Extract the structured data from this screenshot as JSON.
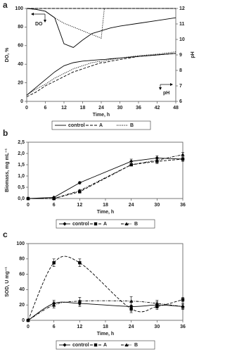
{
  "chart_data": [
    {
      "type": "line",
      "panel_label": "a",
      "xlabel": "Time, h",
      "ylabel": "DO, %",
      "y2label": "pH",
      "annotations": [
        "DO",
        "pH"
      ],
      "x": [
        0,
        3,
        6,
        9,
        12,
        15,
        18,
        21,
        24,
        25,
        27,
        30,
        36,
        42,
        48
      ],
      "xlim": [
        0,
        48
      ],
      "xticks": [
        0,
        6,
        12,
        18,
        24,
        30,
        36,
        42,
        48
      ],
      "ylim": [
        0,
        100
      ],
      "yticks": [
        0,
        20,
        40,
        60,
        80,
        100
      ],
      "y2lim": [
        6,
        12
      ],
      "y2ticks": [
        6,
        7,
        8,
        9,
        10,
        11,
        12
      ],
      "series": [
        {
          "name": "control",
          "color": "#000000",
          "dash": "solid",
          "values": [
            100,
            99,
            97,
            90,
            62,
            58,
            66,
            73,
            76,
            77,
            79,
            81,
            84,
            87,
            90
          ]
        },
        {
          "name": "A",
          "color": "#000000",
          "dash": "dashed",
          "values": [
            100,
            100,
            100,
            100,
            100,
            100,
            100,
            100,
            100,
            100,
            100,
            100,
            100,
            100,
            100
          ]
        },
        {
          "name": "B",
          "color": "#000000",
          "dash": "dotted",
          "values": [
            100,
            99,
            97,
            90,
            84,
            80,
            76,
            72,
            68,
            100,
            100,
            100,
            100,
            100,
            100
          ]
        },
        {
          "name": "control",
          "color": "#000000",
          "dash": "solid",
          "axis": "y2",
          "values": [
            6.4,
            6.9,
            7.4,
            7.9,
            8.3,
            8.5,
            8.6,
            8.65,
            8.7,
            8.7,
            8.75,
            8.8,
            8.9,
            9.0,
            9.1
          ]
        },
        {
          "name": "A",
          "color": "#000000",
          "dash": "dashed",
          "axis": "y2",
          "values": [
            6.3,
            6.6,
            7.0,
            7.3,
            7.6,
            7.9,
            8.1,
            8.3,
            8.5,
            8.5,
            8.6,
            8.7,
            8.9,
            9.0,
            9.1
          ]
        },
        {
          "name": "B",
          "color": "#000000",
          "dash": "dotted",
          "axis": "y2",
          "values": [
            6.4,
            6.8,
            7.1,
            7.5,
            7.8,
            8.1,
            8.3,
            8.5,
            8.6,
            8.6,
            8.7,
            8.8,
            8.95,
            9.05,
            9.2
          ]
        }
      ]
    },
    {
      "type": "line",
      "panel_label": "b",
      "xlabel": "Time, h",
      "ylabel": "Biomass, mg mL⁻¹",
      "x": [
        0,
        6,
        12,
        24,
        30,
        36
      ],
      "xlim": [
        0,
        36
      ],
      "xticks": [
        0,
        6,
        12,
        18,
        24,
        30,
        36
      ],
      "ylim": [
        0,
        2.5
      ],
      "yticks": [
        {
          "value": 0,
          "label": "0,0"
        },
        {
          "value": 0.5,
          "label": "0,5"
        },
        {
          "value": 1,
          "label": "1,0"
        },
        {
          "value": 1.5,
          "label": "1,5"
        },
        {
          "value": 2,
          "label": "2,0"
        },
        {
          "value": 2.5,
          "label": "2,5"
        }
      ],
      "series": [
        {
          "name": "control",
          "color": "#000000",
          "dash": "solid",
          "marker": "diamond",
          "values": [
            0,
            0.05,
            0.7,
            1.65,
            1.8,
            1.75
          ],
          "errors": [
            0,
            0.02,
            0.05,
            0.1,
            0.1,
            0.1
          ]
        },
        {
          "name": "A",
          "color": "#000000",
          "dash": "dashed",
          "marker": "square",
          "values": [
            0,
            0,
            0.3,
            1.5,
            1.65,
            1.75
          ],
          "errors": [
            0,
            0,
            0.05,
            0.05,
            0.1,
            0.1
          ]
        },
        {
          "name": "B",
          "color": "#000000",
          "dash": "dashdot",
          "marker": "triangle",
          "values": [
            0,
            0,
            0.35,
            1.5,
            1.7,
            1.95
          ],
          "errors": [
            0,
            0,
            0.05,
            0.05,
            0.1,
            0.1
          ]
        }
      ]
    },
    {
      "type": "line",
      "panel_label": "c",
      "xlabel": "Time, h",
      "ylabel": "SOD, U mg⁻¹",
      "smooth": true,
      "x": [
        0,
        6,
        12,
        24,
        30,
        36
      ],
      "xlim": [
        0,
        36
      ],
      "xticks": [
        0,
        6,
        12,
        18,
        24,
        30,
        36
      ],
      "ylim": [
        0,
        100
      ],
      "yticks": [
        0,
        20,
        40,
        60,
        80,
        100
      ],
      "series": [
        {
          "name": "control",
          "color": "#000000",
          "dash": "solid",
          "marker": "diamond",
          "values": [
            0,
            22,
            22,
            18,
            20,
            18
          ],
          "errors": [
            0,
            4,
            4,
            6,
            4,
            4
          ]
        },
        {
          "name": "A",
          "color": "#000000",
          "dash": "dashed",
          "marker": "square",
          "values": [
            0,
            75,
            75,
            15,
            18,
            27
          ],
          "errors": [
            0,
            5,
            5,
            5,
            4,
            3
          ]
        },
        {
          "name": "B",
          "color": "#000000",
          "dash": "dashdot",
          "marker": "triangle",
          "values": [
            0,
            20,
            25,
            25,
            22,
            18
          ],
          "errors": [
            0,
            4,
            5,
            6,
            4,
            3
          ]
        }
      ]
    }
  ]
}
